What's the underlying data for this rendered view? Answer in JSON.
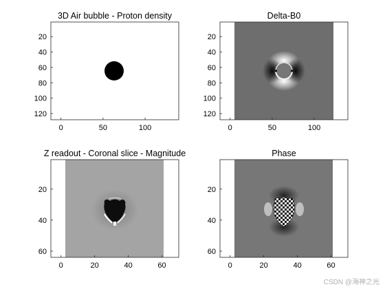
{
  "watermark": "CSDN @海神之光",
  "chart_data": [
    {
      "type": "heatmap",
      "title": "3D Air bubble - Proton density",
      "xlim": [
        -12,
        140
      ],
      "ylim": [
        1,
        128
      ],
      "image_extent_x": [
        1,
        128
      ],
      "xticks": [
        0,
        50,
        100
      ],
      "yticks": [
        20,
        40,
        60,
        80,
        100,
        120
      ],
      "colormap": "gray",
      "content": "uniform white field with a black disk (air bubble) centered at (64, 64), radius about 12"
    },
    {
      "type": "heatmap",
      "title": "Delta-B0",
      "xlim": [
        -12,
        140
      ],
      "ylim": [
        1,
        128
      ],
      "image_extent_x": [
        1,
        128
      ],
      "xticks": [
        0,
        50,
        100
      ],
      "yticks": [
        20,
        40,
        60,
        80,
        100,
        120
      ],
      "colormap": "gray",
      "content": "mid-gray field with dipole pattern around bubble at (64, 64): bright lobes top/bottom, dark lobes left/right"
    },
    {
      "type": "heatmap",
      "title": "Z readout - Coronal slice - Magnitude",
      "xlim": [
        -6,
        70
      ],
      "ylim": [
        1,
        64
      ],
      "image_extent_x": [
        1,
        64
      ],
      "xticks": [
        0,
        20,
        40,
        60
      ],
      "yticks": [
        20,
        40,
        60
      ],
      "colormap": "gray",
      "content": "light-gray field with dark signal void at (32, 33) and bright rim artifacts"
    },
    {
      "type": "heatmap",
      "title": "Phase",
      "xlim": [
        -6,
        70
      ],
      "ylim": [
        1,
        64
      ],
      "image_extent_x": [
        1,
        64
      ],
      "xticks": [
        0,
        20,
        40,
        60
      ],
      "yticks": [
        20,
        40,
        60
      ],
      "colormap": "gray",
      "content": "mid-gray field with checkered phase-wrapping pattern at (32, 33), dark halo above and below"
    }
  ]
}
